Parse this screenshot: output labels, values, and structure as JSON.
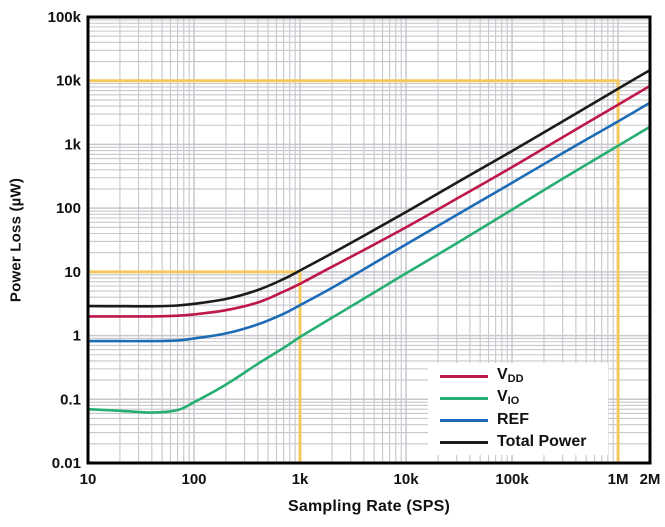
{
  "chart_data": {
    "type": "line",
    "x_scale": "log",
    "y_scale": "log",
    "xlabel": "Sampling Rate (SPS)",
    "ylabel": "Power Loss (µW)",
    "xlim": [
      10,
      2000000
    ],
    "ylim": [
      0.01,
      100000
    ],
    "grid": {
      "minor_gridlines": true,
      "color": "#c7c7cd"
    },
    "frame_color": "#000000",
    "x_ticks": [
      {
        "value": 10,
        "label": "10"
      },
      {
        "value": 100,
        "label": "100"
      },
      {
        "value": 1000,
        "label": "1k"
      },
      {
        "value": 10000,
        "label": "10k"
      },
      {
        "value": 100000,
        "label": "100k"
      },
      {
        "value": 1000000,
        "label": "1M"
      },
      {
        "value": 2000000,
        "label": "2M"
      }
    ],
    "y_ticks": [
      {
        "value": 100000,
        "label": "100k"
      },
      {
        "value": 10000,
        "label": "10k"
      },
      {
        "value": 1000,
        "label": "1k"
      },
      {
        "value": 100,
        "label": "100"
      },
      {
        "value": 10,
        "label": "10"
      },
      {
        "value": 1,
        "label": "1"
      },
      {
        "value": 0.1,
        "label": "0.1"
      },
      {
        "value": 0.01,
        "label": "0.01"
      }
    ],
    "annotation_color": "#f3c95e",
    "annotations": [
      {
        "type": "crosshair",
        "x": 1000,
        "y": 10
      },
      {
        "type": "crosshair",
        "x": 1000000,
        "y": 10000
      }
    ],
    "legend_position": "bottom-right",
    "series": [
      {
        "name": "VIO",
        "legend_main": "V",
        "legend_sub": "IO",
        "color": "#27ae73",
        "points": [
          [
            10,
            0.07
          ],
          [
            20,
            0.066
          ],
          [
            40,
            0.062
          ],
          [
            70,
            0.068
          ],
          [
            100,
            0.09
          ],
          [
            200,
            0.17
          ],
          [
            400,
            0.36
          ],
          [
            700,
            0.64
          ],
          [
            1000,
            0.95
          ],
          [
            2000,
            1.9
          ],
          [
            4000,
            3.8
          ],
          [
            10000,
            9.5
          ],
          [
            30000,
            28
          ],
          [
            100000,
            95
          ],
          [
            300000,
            290
          ],
          [
            1000000,
            950
          ],
          [
            2000000,
            1900
          ]
        ]
      },
      {
        "name": "REF",
        "legend_main": "REF",
        "legend_sub": "",
        "color": "#1e6cb5",
        "points": [
          [
            10,
            0.82
          ],
          [
            20,
            0.82
          ],
          [
            40,
            0.82
          ],
          [
            70,
            0.84
          ],
          [
            100,
            0.9
          ],
          [
            200,
            1.08
          ],
          [
            400,
            1.5
          ],
          [
            700,
            2.2
          ],
          [
            1000,
            3.0
          ],
          [
            2000,
            5.6
          ],
          [
            4000,
            11
          ],
          [
            10000,
            27
          ],
          [
            30000,
            78
          ],
          [
            100000,
            250
          ],
          [
            300000,
            730
          ],
          [
            1000000,
            2300
          ],
          [
            2000000,
            4500
          ]
        ]
      },
      {
        "name": "VDD",
        "legend_main": "V",
        "legend_sub": "DD",
        "color": "#be1849",
        "points": [
          [
            10,
            2.0
          ],
          [
            20,
            2.0
          ],
          [
            40,
            2.0
          ],
          [
            70,
            2.05
          ],
          [
            100,
            2.15
          ],
          [
            200,
            2.5
          ],
          [
            400,
            3.3
          ],
          [
            700,
            4.9
          ],
          [
            1000,
            6.5
          ],
          [
            2000,
            12
          ],
          [
            4000,
            22
          ],
          [
            10000,
            50
          ],
          [
            30000,
            140
          ],
          [
            100000,
            440
          ],
          [
            300000,
            1300
          ],
          [
            1000000,
            4200
          ],
          [
            2000000,
            8300
          ]
        ]
      },
      {
        "name": "Total Power",
        "legend_main": "Total Power",
        "legend_sub": "",
        "color": "#1b1b1b",
        "points": [
          [
            10,
            2.9
          ],
          [
            20,
            2.89
          ],
          [
            40,
            2.88
          ],
          [
            70,
            2.96
          ],
          [
            100,
            3.15
          ],
          [
            200,
            3.75
          ],
          [
            400,
            5.2
          ],
          [
            700,
            7.7
          ],
          [
            1000,
            10.5
          ],
          [
            2000,
            19.5
          ],
          [
            4000,
            37
          ],
          [
            10000,
            87
          ],
          [
            30000,
            250
          ],
          [
            100000,
            790
          ],
          [
            300000,
            2300
          ],
          [
            1000000,
            7500
          ],
          [
            2000000,
            14700
          ]
        ]
      }
    ],
    "legend_order": [
      "VDD",
      "VIO",
      "REF",
      "Total Power"
    ]
  }
}
